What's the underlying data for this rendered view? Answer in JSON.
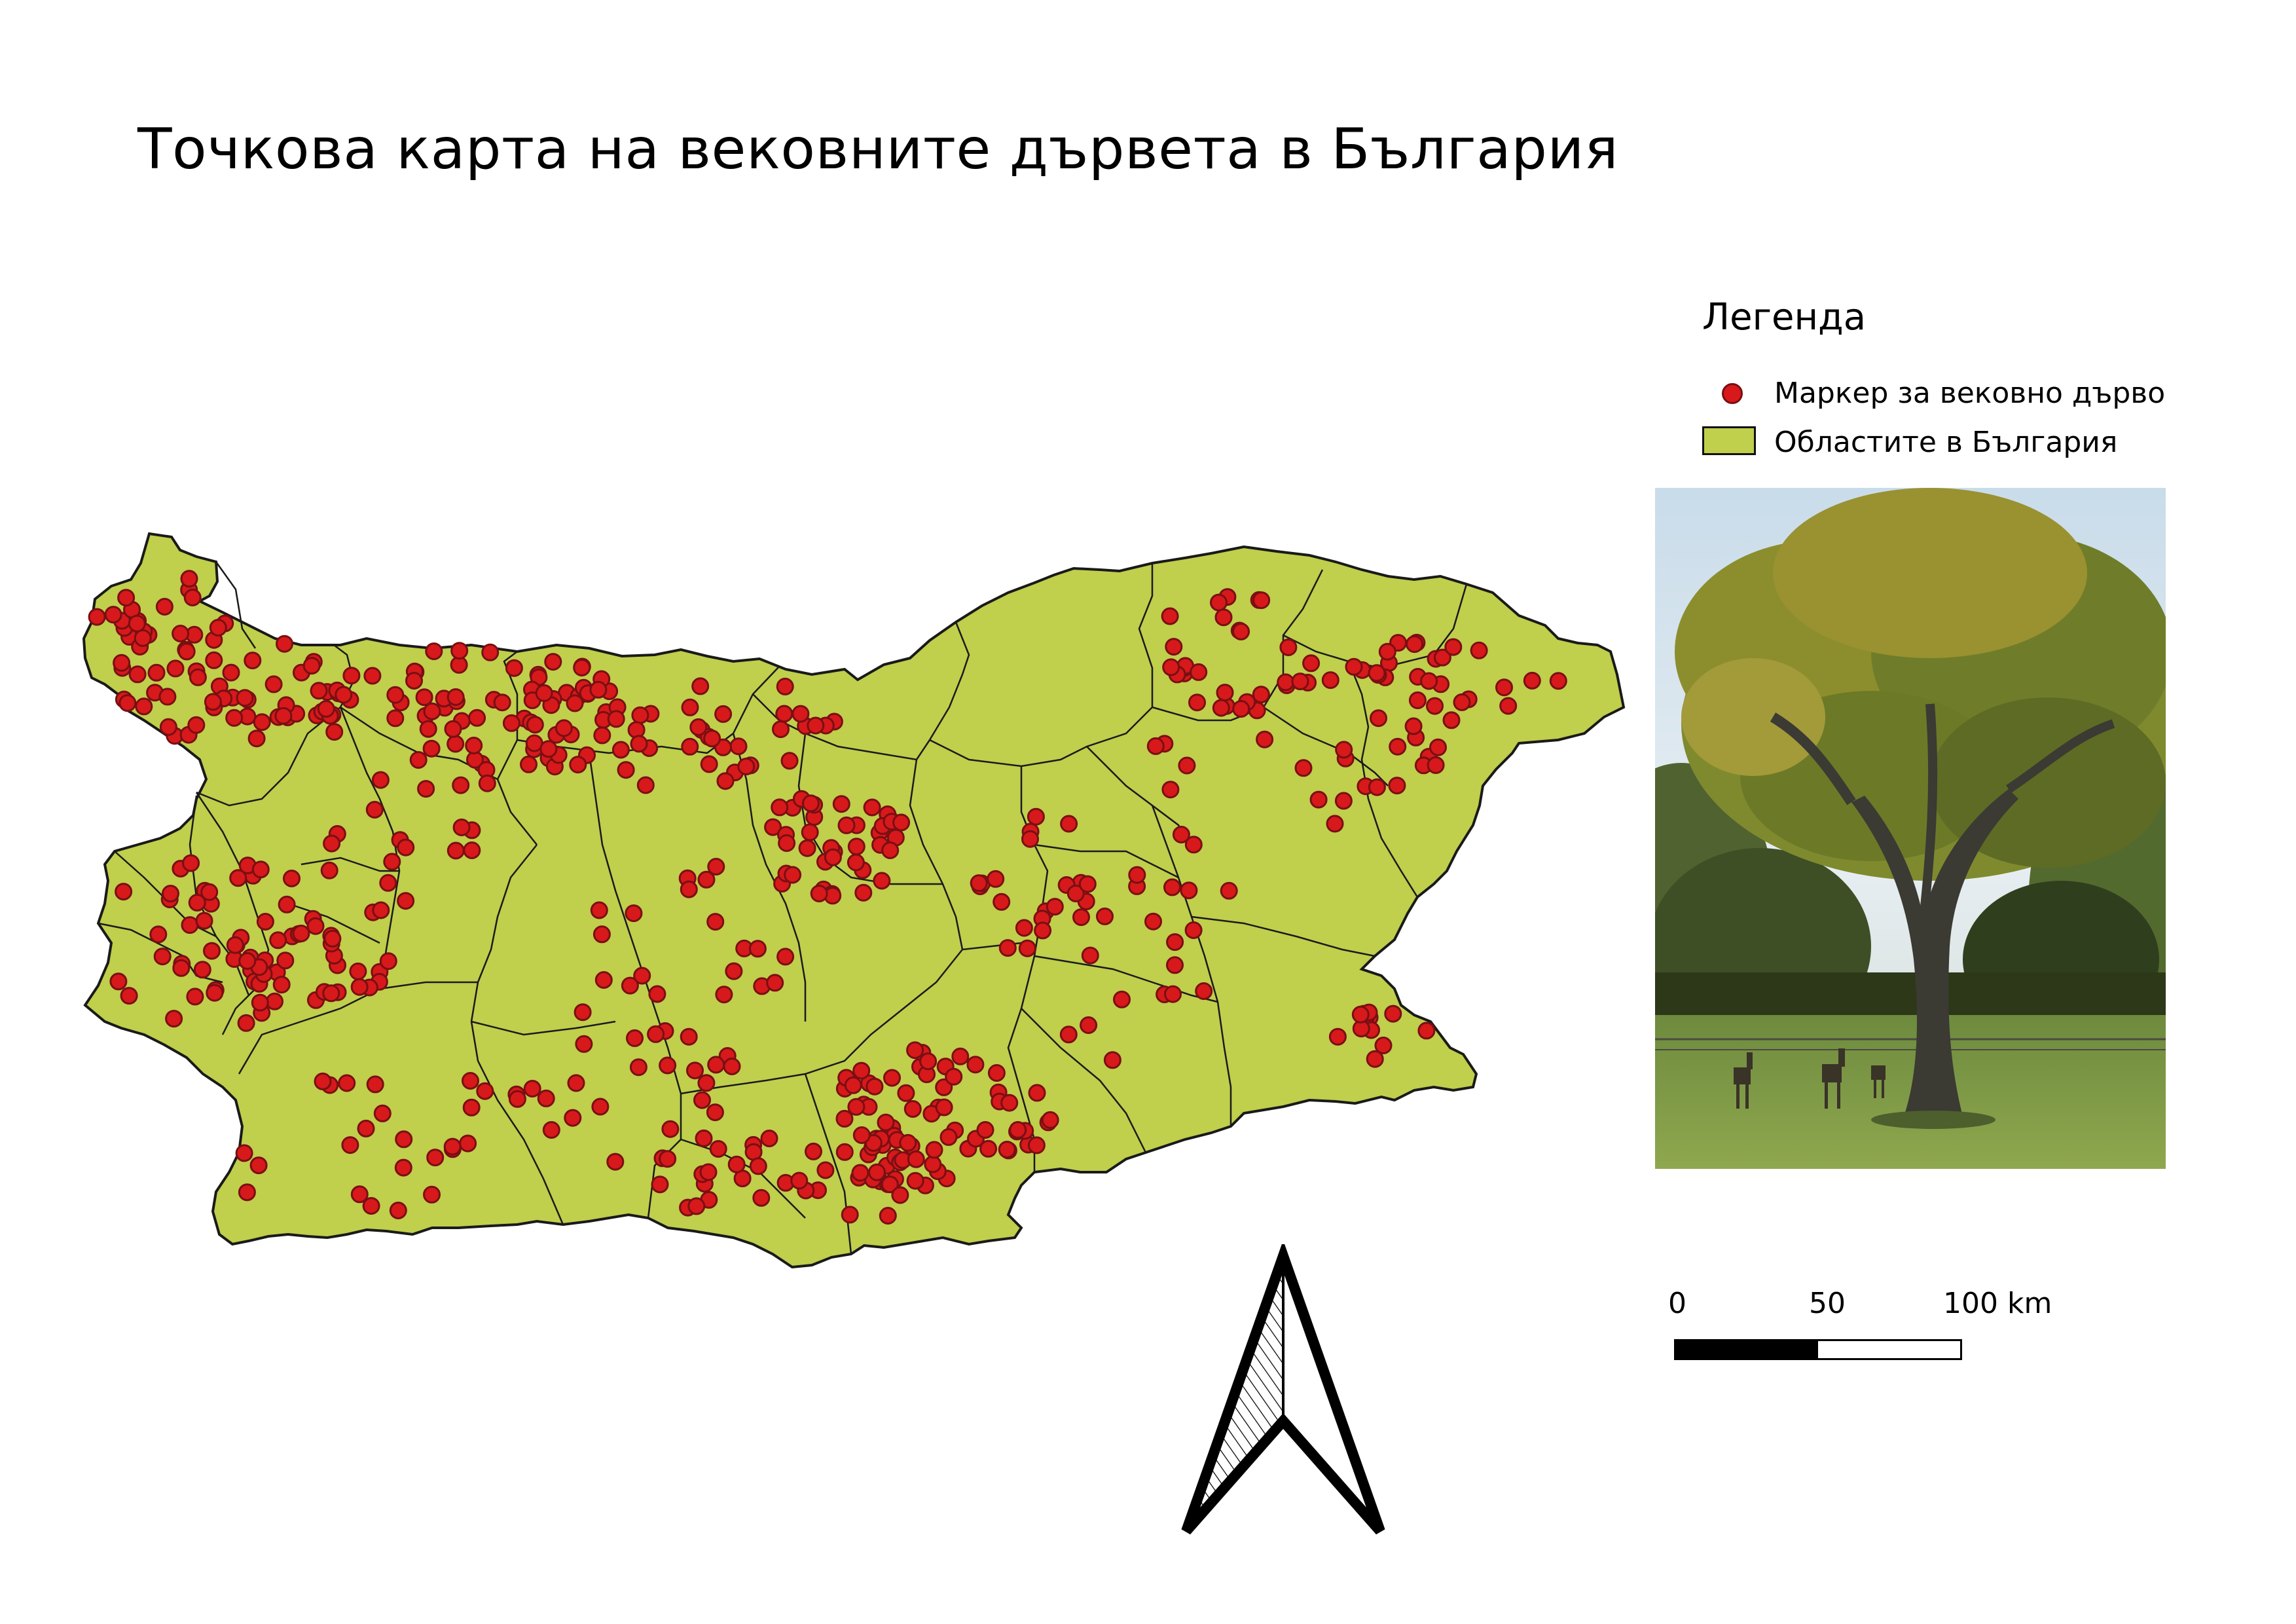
{
  "title": "Точкова карта на вековните дървета в България",
  "legend": {
    "title": "Легенда",
    "items": [
      {
        "label": "Маркер за вековно дърво",
        "symbol": "circle-marker"
      },
      {
        "label": "Областите в България",
        "symbol": "filled-polygon"
      }
    ]
  },
  "colors": {
    "region_fill": "#c0cf4c",
    "region_border": "#1a1a1a",
    "marker_fill": "#d7191c",
    "marker_border": "#7a0f12"
  },
  "scale_bar": {
    "labels": [
      "0",
      "50",
      "100 km"
    ]
  },
  "north_arrow": {
    "icon": "north-arrow-icon"
  },
  "photo": {
    "icon": "oak-tree-photo"
  }
}
